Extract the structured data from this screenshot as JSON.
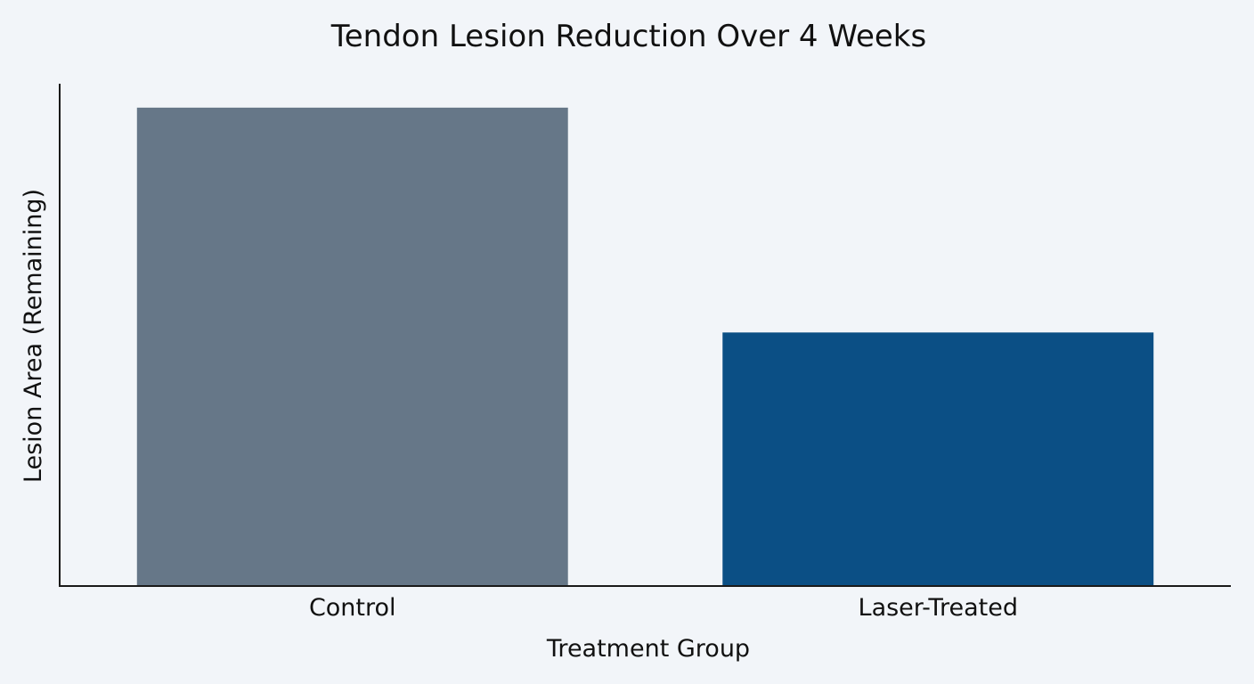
{
  "chart_data": {
    "type": "bar",
    "title": "Tendon Lesion Reduction Over 4 Weeks",
    "xlabel": "Treatment Group",
    "ylabel": "Lesion Area (Remaining)",
    "categories": [
      "Control",
      "Laser-Treated"
    ],
    "values": [
      100,
      53
    ],
    "ylim": [
      0,
      105
    ],
    "colors": [
      "#667788",
      "#0b4f85"
    ],
    "grid": false,
    "y_tick_labels_shown": false
  }
}
